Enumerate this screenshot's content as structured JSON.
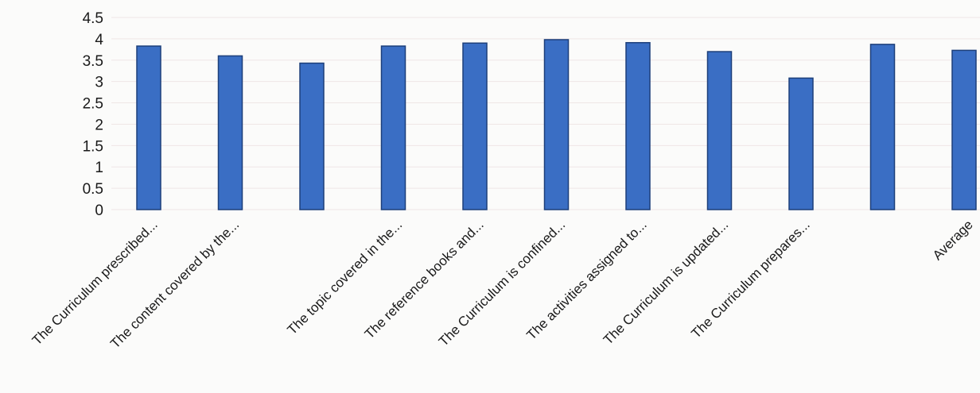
{
  "chart_data": {
    "type": "bar",
    "categories": [
      "The Curriculum prescribed...",
      "The content covered by the...",
      "",
      "The topic covered in the...",
      "The reference books and...",
      "The Curriculum is confined...",
      "The activities assigned to...",
      "The Curriculum is updated...",
      "The Curriculum prepares...",
      "",
      "Average"
    ],
    "values": [
      3.83,
      3.6,
      3.43,
      3.83,
      3.9,
      3.98,
      3.91,
      3.7,
      3.08,
      3.87,
      3.73
    ],
    "ylim": [
      0,
      4.5
    ],
    "yticks": [
      "0",
      "0.5",
      "1",
      "1.5",
      "2",
      "2.5",
      "3",
      "3.5",
      "4",
      "4.5"
    ],
    "grid": true,
    "colors": {
      "bar": "#3a6ec4",
      "bar_edge": "#1d3f7a",
      "grid": "#efe6e6"
    }
  }
}
